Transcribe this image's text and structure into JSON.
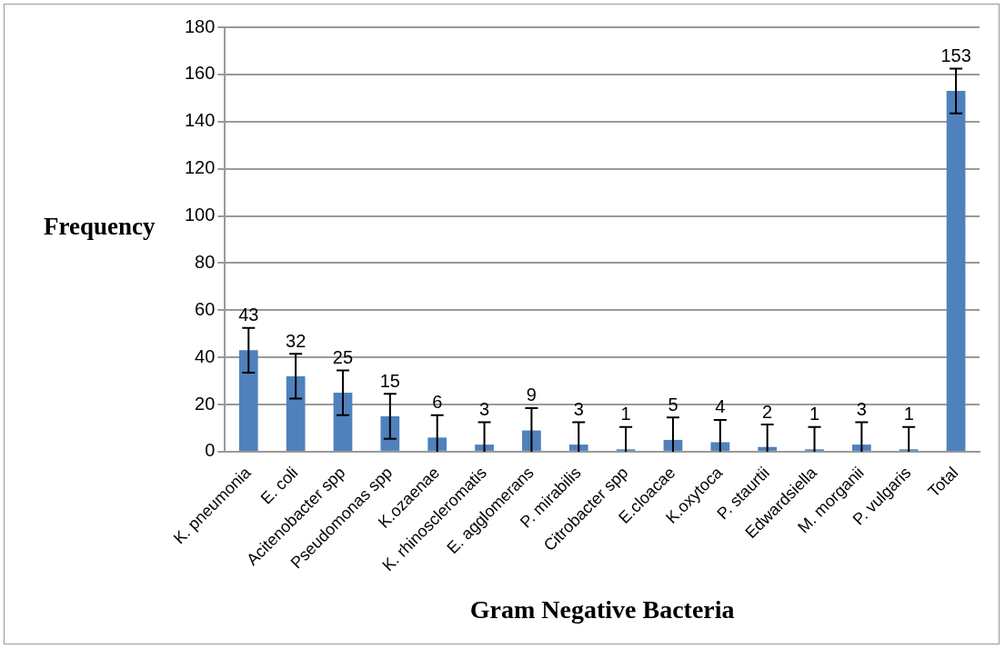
{
  "chart_data": {
    "type": "bar",
    "xlabel": "Gram Negative Bacteria",
    "ylabel": "Frequency",
    "categories": [
      "K. pneumonia",
      "E. coli",
      "Acitenobacter spp",
      "Pseudomonas spp",
      "K.ozaenae",
      "K. rhinoscleromatis",
      "E. agglomerans",
      "P. mirabilis",
      "Citrobacter spp",
      "E.cloacae",
      "K.oxytoca",
      "P. staurtii",
      "Edwardsiella",
      "M. morganii",
      "P. vulgaris",
      "Total"
    ],
    "values": [
      43,
      32,
      25,
      15,
      6,
      3,
      9,
      3,
      1,
      5,
      4,
      2,
      1,
      3,
      1,
      153
    ],
    "errors": [
      [
        33.5,
        52.5
      ],
      [
        22.5,
        41.5
      ],
      [
        15.5,
        34.5
      ],
      [
        5.5,
        24.5
      ],
      [
        0,
        15.5
      ],
      [
        0,
        12.5
      ],
      [
        0,
        18.5
      ],
      [
        0,
        12.5
      ],
      [
        0,
        10.5
      ],
      [
        0,
        14.5
      ],
      [
        0,
        13.5
      ],
      [
        0,
        11.5
      ],
      [
        0,
        10.5
      ],
      [
        0,
        12.5
      ],
      [
        0,
        10.5
      ],
      [
        143.5,
        162.5
      ]
    ],
    "color": "#4f81bd",
    "ylim": [
      0,
      180
    ],
    "yticks": [
      0,
      20,
      40,
      60,
      80,
      100,
      120,
      140,
      160,
      180
    ],
    "grid": "y",
    "data_labels": true
  }
}
